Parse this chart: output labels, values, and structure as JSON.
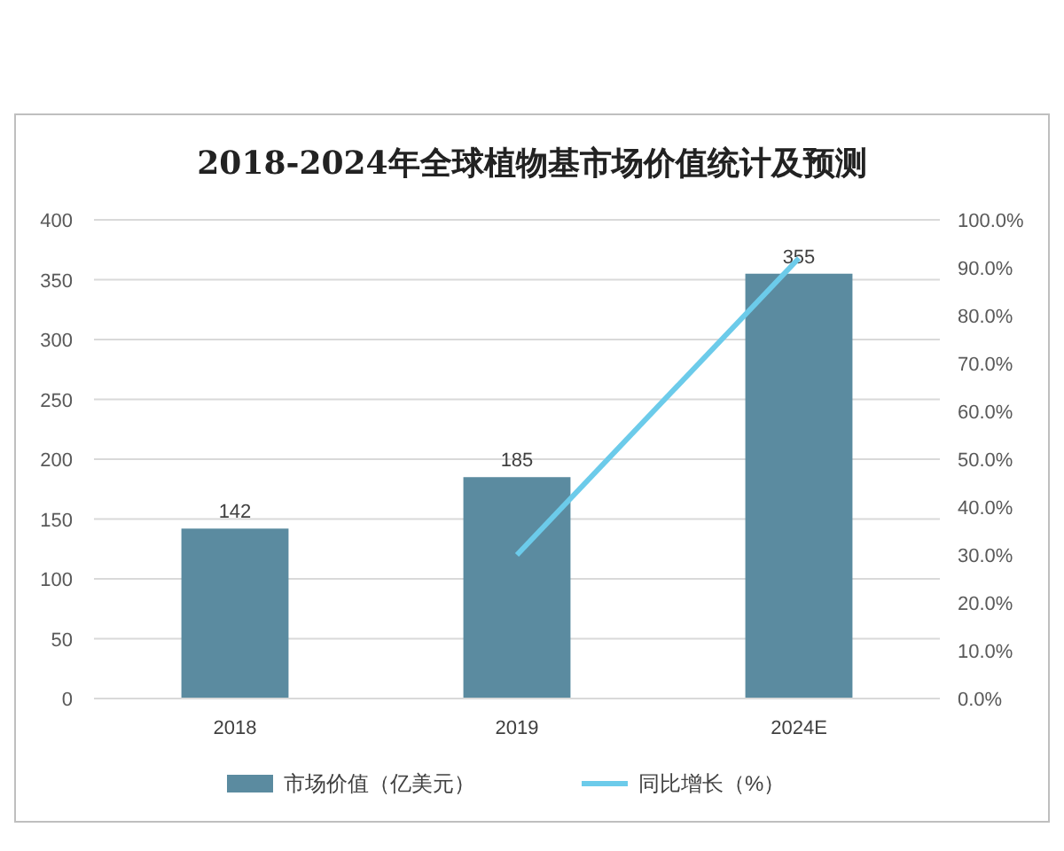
{
  "chart_data": {
    "type": "bar",
    "title": "2018-2024年全球植物基市场价值统计及预测",
    "categories": [
      "2018",
      "2019",
      "2024E"
    ],
    "series": [
      {
        "name": "市场价值（亿美元）",
        "color": "#5b8ba0",
        "values": [
          142,
          185,
          355
        ],
        "value_labels": [
          "142",
          "185",
          "355"
        ]
      },
      {
        "name": "同比增长（%）",
        "type": "line",
        "axis": "y2",
        "color": "#6ccbea",
        "values": [
          null,
          30,
          92
        ],
        "marker": "none"
      }
    ],
    "ylim": [
      0,
      400
    ],
    "yticks": [
      0,
      50,
      100,
      150,
      200,
      250,
      300,
      350,
      400
    ],
    "y2lim": [
      0,
      100
    ],
    "y2ticks": [
      {
        "value": 0,
        "label": "0.0%"
      },
      {
        "value": 10,
        "label": "10.0%"
      },
      {
        "value": 20,
        "label": "20.0%"
      },
      {
        "value": 30,
        "label": "30.0%"
      },
      {
        "value": 40,
        "label": "40.0%"
      },
      {
        "value": 50,
        "label": "50.0%"
      },
      {
        "value": 60,
        "label": "60.0%"
      },
      {
        "value": 70,
        "label": "70.0%"
      },
      {
        "value": 80,
        "label": "80.0%"
      },
      {
        "value": 90,
        "label": "90.0%"
      },
      {
        "value": 100,
        "label": "100.0%"
      }
    ],
    "grid": "y",
    "legend": "bottom"
  }
}
